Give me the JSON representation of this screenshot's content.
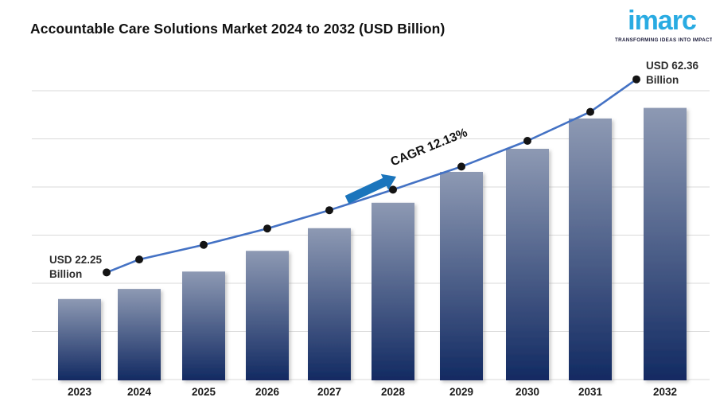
{
  "header": {
    "title": "Accountable Care Solutions Market 2024 to 2032 (USD Billion)",
    "logo_text": "imarc",
    "logo_tagline": "TRANSFORMING IDEAS INTO IMPACT"
  },
  "chart_data": {
    "type": "bar",
    "title": "Accountable Care Solutions Market 2024 to 2032 (USD Billion)",
    "categories": [
      "2023",
      "2024",
      "2025",
      "2026",
      "2027",
      "2028",
      "2029",
      "2030",
      "2031",
      "2032"
    ],
    "series": [
      {
        "name": "Market value trend line (USD Billion)",
        "type": "line",
        "values": [
          22.25,
          24.95,
          27.98,
          31.37,
          35.17,
          39.44,
          44.23,
          49.59,
          55.6,
          62.36
        ]
      },
      {
        "name": "Market value bars as drawn (USD Billion)",
        "type": "bar",
        "values": [
          16.9,
          19.0,
          22.6,
          26.9,
          31.6,
          36.9,
          43.3,
          48.1,
          54.4,
          56.6
        ]
      }
    ],
    "xlabel": "",
    "ylabel": "",
    "ylim": [
      0,
      66
    ],
    "gridline_values": [
      0,
      10,
      20,
      30,
      40,
      50,
      60
    ],
    "grid": "horizontal, no y-axis tick labels",
    "legend": "none",
    "start_value_usd_billion": 22.25,
    "end_value_usd_billion": 62.36,
    "cagr_percent": 12.13,
    "annotations": {
      "start": {
        "line1": "USD 22.25",
        "line2": "Billion"
      },
      "end": {
        "line1": "USD 62.36",
        "line2": "Billion"
      },
      "cagr": "CAGR 12.13%"
    }
  },
  "colors": {
    "logo_blue": "#29ABE2",
    "tagline_dark": "#181838",
    "bar_gradient_top": "#8D99B3",
    "bar_gradient_bottom": "#122A62",
    "line": "#4472C4",
    "marker": "#141414",
    "arrow": "#1B75BC",
    "gridline": "#D9D9D9",
    "axis_text": "#1A1A1A"
  }
}
